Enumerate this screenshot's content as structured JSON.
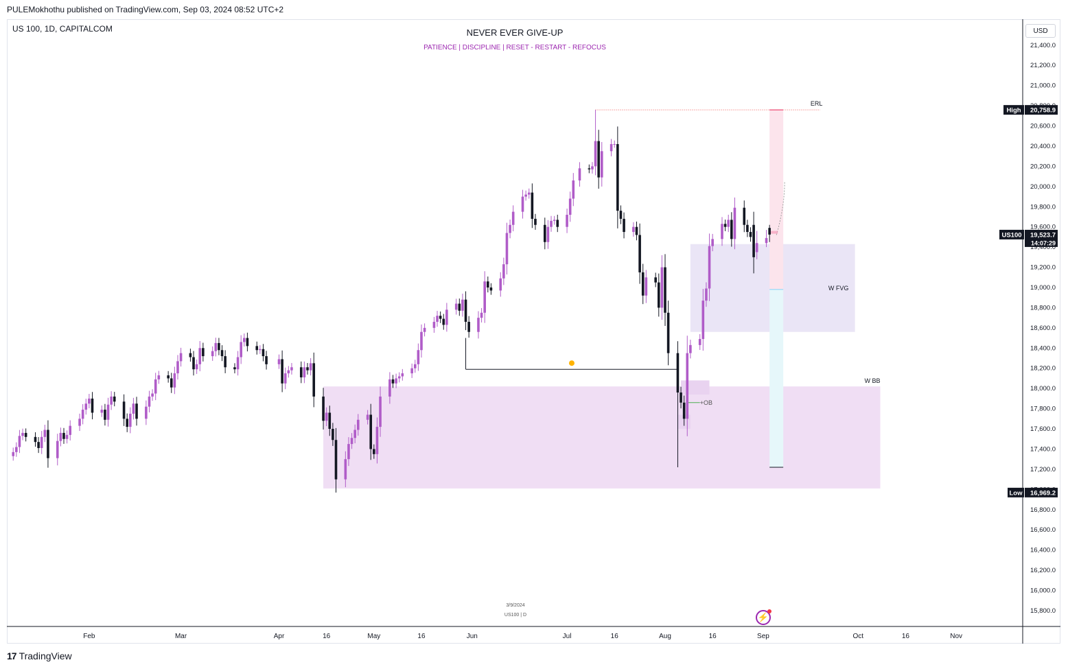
{
  "header": {
    "publisher": "PULEMokhothu published on TradingView.com, Sep 03, 2024 08:52 UTC+2",
    "symbol": "US 100, 1D, CAPITALCOM",
    "title": "NEVER EVER GIVE-UP",
    "subtitle": "PATIENCE   |   DISCIPLINE   |   RESET - RESTART - REFOCUS",
    "currency": "USD"
  },
  "footer": {
    "logo_mark": "17",
    "logo_text": "TradingView"
  },
  "watermark": {
    "date": "3/9/2024",
    "symbol": "US100 | D"
  },
  "colors": {
    "bull": "#b05cc8",
    "bear": "#131722",
    "zone": "#f0def4",
    "fvg": "#e6e1f4",
    "target_up": "#fce4ec",
    "target_down": "#e6f7fa",
    "accent": "#9c27b0",
    "grid": "#e0e3eb"
  },
  "chart_data": {
    "type": "candlestick",
    "y_axis": {
      "ticks": [
        15800,
        16000,
        16200,
        16400,
        16600,
        16800,
        17000,
        17200,
        17400,
        17600,
        17800,
        18000,
        18200,
        18400,
        18600,
        18800,
        19000,
        19200,
        19400,
        19600,
        19800,
        20000,
        20200,
        20400,
        20600,
        20800,
        21000,
        21200,
        21400
      ],
      "tick_labels": [
        "15,800.0",
        "16,000.0",
        "16,200.0",
        "16,400.0",
        "16,600.0",
        "16,800.0",
        "17,000.0",
        "17,200.0",
        "17,400.0",
        "17,600.0",
        "17,800.0",
        "18,000.0",
        "18,200.0",
        "18,400.0",
        "18,600.0",
        "18,800.0",
        "19,000.0",
        "19,200.0",
        "19,400.0",
        "19,600.0",
        "19,800.0",
        "20,000.0",
        "20,200.0",
        "20,400.0",
        "20,600.0",
        "20,800.0",
        "21,000.0",
        "21,200.0",
        "21,400.0"
      ],
      "range": [
        15650,
        21650
      ]
    },
    "x_axis": {
      "labels": [
        "Feb",
        "Mar",
        "Apr",
        "16",
        "May",
        "16",
        "Jun",
        "Jul",
        "16",
        "Aug",
        "16",
        "Sep",
        "Oct",
        "16",
        "Nov"
      ],
      "dates": [
        "2024-02-01",
        "2024-03-01",
        "2024-04-01",
        "2024-04-16",
        "2024-05-01",
        "2024-05-16",
        "2024-06-01",
        "2024-07-01",
        "2024-07-16",
        "2024-08-01",
        "2024-08-16",
        "2024-09-01",
        "2024-10-01",
        "2024-10-16",
        "2024-11-01"
      ],
      "range": [
        "2024-01-06",
        "2024-11-22"
      ]
    },
    "candles_close": [
      [
        "2024-01-08",
        17370
      ],
      [
        "2024-01-09",
        17420
      ],
      [
        "2024-01-10",
        17530
      ],
      [
        "2024-01-11",
        17560
      ],
      [
        "2024-01-12",
        17520
      ],
      [
        "2024-01-15",
        17470
      ],
      [
        "2024-01-16",
        17410
      ],
      [
        "2024-01-17",
        17520
      ],
      [
        "2024-01-18",
        17590
      ],
      [
        "2024-01-19",
        17310
      ],
      [
        "2024-01-22",
        17480
      ],
      [
        "2024-01-23",
        17560
      ],
      [
        "2024-01-24",
        17500
      ],
      [
        "2024-01-25",
        17540
      ],
      [
        "2024-01-26",
        17630
      ],
      [
        "2024-01-29",
        17700
      ],
      [
        "2024-01-30",
        17790
      ],
      [
        "2024-01-31",
        17850
      ],
      [
        "2024-02-01",
        17900
      ],
      [
        "2024-02-02",
        17760
      ],
      [
        "2024-02-05",
        17790
      ],
      [
        "2024-02-06",
        17690
      ],
      [
        "2024-02-07",
        17840
      ],
      [
        "2024-02-08",
        17920
      ],
      [
        "2024-02-09",
        17870
      ],
      [
        "2024-02-12",
        17700
      ],
      [
        "2024-02-13",
        17620
      ],
      [
        "2024-02-14",
        17750
      ],
      [
        "2024-02-15",
        17850
      ],
      [
        "2024-02-16",
        17700
      ],
      [
        "2024-02-19",
        17820
      ],
      [
        "2024-02-20",
        17920
      ],
      [
        "2024-02-21",
        17950
      ],
      [
        "2024-02-22",
        18090
      ],
      [
        "2024-02-23",
        18130
      ],
      [
        "2024-02-26",
        18100
      ],
      [
        "2024-02-27",
        18010
      ],
      [
        "2024-02-28",
        18150
      ],
      [
        "2024-02-29",
        18270
      ],
      [
        "2024-03-01",
        18350
      ],
      [
        "2024-03-04",
        18310
      ],
      [
        "2024-03-05",
        18190
      ],
      [
        "2024-03-06",
        18240
      ],
      [
        "2024-03-07",
        18400
      ],
      [
        "2024-03-08",
        18320
      ],
      [
        "2024-03-11",
        18370
      ],
      [
        "2024-03-12",
        18450
      ],
      [
        "2024-03-13",
        18380
      ],
      [
        "2024-03-14",
        18320
      ],
      [
        "2024-03-15",
        18210
      ],
      [
        "2024-03-18",
        18190
      ],
      [
        "2024-03-19",
        18310
      ],
      [
        "2024-03-20",
        18460
      ],
      [
        "2024-03-21",
        18500
      ],
      [
        "2024-03-22",
        18420
      ],
      [
        "2024-03-25",
        18380
      ],
      [
        "2024-03-26",
        18390
      ],
      [
        "2024-03-27",
        18320
      ],
      [
        "2024-03-28",
        18240
      ],
      [
        "2024-04-01",
        18290
      ],
      [
        "2024-04-02",
        18050
      ],
      [
        "2024-04-03",
        18150
      ],
      [
        "2024-04-04",
        18180
      ],
      [
        "2024-04-05",
        18210
      ],
      [
        "2024-04-08",
        18110
      ],
      [
        "2024-04-09",
        18210
      ],
      [
        "2024-04-10",
        18180
      ],
      [
        "2024-04-11",
        18250
      ],
      [
        "2024-04-12",
        17920
      ],
      [
        "2024-04-15",
        17680
      ],
      [
        "2024-04-16",
        17760
      ],
      [
        "2024-04-17",
        17600
      ],
      [
        "2024-04-18",
        17490
      ],
      [
        "2024-04-19",
        17100
      ],
      [
        "2024-04-22",
        17300
      ],
      [
        "2024-04-23",
        17450
      ],
      [
        "2024-04-24",
        17510
      ],
      [
        "2024-04-25",
        17590
      ],
      [
        "2024-04-26",
        17690
      ],
      [
        "2024-04-29",
        17740
      ],
      [
        "2024-04-30",
        17400
      ],
      [
        "2024-05-01",
        17350
      ],
      [
        "2024-05-02",
        17620
      ],
      [
        "2024-05-03",
        17920
      ],
      [
        "2024-05-06",
        18090
      ],
      [
        "2024-05-07",
        18050
      ],
      [
        "2024-05-08",
        18100
      ],
      [
        "2024-05-09",
        18120
      ],
      [
        "2024-05-10",
        18150
      ],
      [
        "2024-05-13",
        18200
      ],
      [
        "2024-05-14",
        18240
      ],
      [
        "2024-05-15",
        18380
      ],
      [
        "2024-05-16",
        18560
      ],
      [
        "2024-05-17",
        18600
      ],
      [
        "2024-05-20",
        18660
      ],
      [
        "2024-05-21",
        18720
      ],
      [
        "2024-05-22",
        18690
      ],
      [
        "2024-05-23",
        18630
      ],
      [
        "2024-05-24",
        18780
      ],
      [
        "2024-05-27",
        18840
      ],
      [
        "2024-05-28",
        18770
      ],
      [
        "2024-05-29",
        18880
      ],
      [
        "2024-05-30",
        18660
      ],
      [
        "2024-05-31",
        18560
      ],
      [
        "2024-06-03",
        18700
      ],
      [
        "2024-06-04",
        18750
      ],
      [
        "2024-06-05",
        19060
      ],
      [
        "2024-06-06",
        19000
      ],
      [
        "2024-06-07",
        18970
      ],
      [
        "2024-06-10",
        19090
      ],
      [
        "2024-06-11",
        19230
      ],
      [
        "2024-06-12",
        19540
      ],
      [
        "2024-06-13",
        19620
      ],
      [
        "2024-06-14",
        19750
      ],
      [
        "2024-06-17",
        19900
      ],
      [
        "2024-06-18",
        19920
      ],
      [
        "2024-06-19",
        19940
      ],
      [
        "2024-06-20",
        19680
      ],
      [
        "2024-06-21",
        19620
      ],
      [
        "2024-06-24",
        19450
      ],
      [
        "2024-06-25",
        19600
      ],
      [
        "2024-06-26",
        19660
      ],
      [
        "2024-06-27",
        19670
      ],
      [
        "2024-06-28",
        19600
      ],
      [
        "2024-07-01",
        19720
      ],
      [
        "2024-07-02",
        19880
      ],
      [
        "2024-07-03",
        20060
      ],
      [
        "2024-07-05",
        20180
      ],
      [
        "2024-07-08",
        20170
      ],
      [
        "2024-07-09",
        20200
      ],
      [
        "2024-07-10",
        20450
      ],
      [
        "2024-07-11",
        20090
      ],
      [
        "2024-07-12",
        20350
      ],
      [
        "2024-07-15",
        20420
      ],
      [
        "2024-07-16",
        20420
      ],
      [
        "2024-07-17",
        19760
      ],
      [
        "2024-07-18",
        19680
      ],
      [
        "2024-07-19",
        19550
      ],
      [
        "2024-07-22",
        19600
      ],
      [
        "2024-07-23",
        19520
      ],
      [
        "2024-07-24",
        19150
      ],
      [
        "2024-07-25",
        18920
      ],
      [
        "2024-07-26",
        19100
      ],
      [
        "2024-07-29",
        19050
      ],
      [
        "2024-07-30",
        18800
      ],
      [
        "2024-07-31",
        19200
      ],
      [
        "2024-08-01",
        18750
      ],
      [
        "2024-08-02",
        18350
      ],
      [
        "2024-08-05",
        17960
      ],
      [
        "2024-08-06",
        17860
      ],
      [
        "2024-08-07",
        17700
      ],
      [
        "2024-08-08",
        18350
      ],
      [
        "2024-08-09",
        18430
      ],
      [
        "2024-08-12",
        18490
      ],
      [
        "2024-08-13",
        18870
      ],
      [
        "2024-08-14",
        18990
      ],
      [
        "2024-08-15",
        19410
      ],
      [
        "2024-08-16",
        19480
      ],
      [
        "2024-08-19",
        19630
      ],
      [
        "2024-08-20",
        19600
      ],
      [
        "2024-08-21",
        19670
      ],
      [
        "2024-08-22",
        19480
      ],
      [
        "2024-08-23",
        19790
      ],
      [
        "2024-08-26",
        19620
      ],
      [
        "2024-08-27",
        19550
      ],
      [
        "2024-08-28",
        19500
      ],
      [
        "2024-08-29",
        19300
      ],
      [
        "2024-08-30",
        19440
      ],
      [
        "2024-09-02",
        19490
      ],
      [
        "2024-09-03",
        19524
      ]
    ],
    "candles": [
      [
        "2024-08-29",
        19620,
        19750,
        19140,
        19300
      ],
      [
        "2024-08-30",
        19350,
        19560,
        19280,
        19440
      ],
      [
        "2024-09-02",
        19440,
        19570,
        19400,
        19490
      ],
      [
        "2024-09-03",
        19590,
        19620,
        19450,
        19524
      ]
    ],
    "overlays": {
      "high": {
        "label": "High",
        "value": "20,758.9",
        "price": 20758.9
      },
      "low": {
        "label": "Low",
        "value": "16,969.2",
        "price": 16969.2
      },
      "last": {
        "label": "US100",
        "value": "19,523.7",
        "countdown": "14:07:29",
        "price": 19523.7
      },
      "erl": {
        "label": "ERL",
        "price": 20758.9,
        "from": "2024-07-10",
        "to": "2024-09-19"
      },
      "w_fvg": {
        "label": "W FVG",
        "price_top": 19430,
        "price_bottom": 18560,
        "from": "2024-08-09",
        "to": "2024-09-30"
      },
      "w_bb": {
        "label": "W BB",
        "price_top": 18020,
        "price_bottom": 17010,
        "from": "2024-04-15",
        "to": "2024-10-08"
      },
      "ob": {
        "label": "+OB",
        "price": 17860
      },
      "level_line": {
        "price": 18190,
        "from": "2024-05-30",
        "to": "2024-08-05"
      },
      "target": {
        "entry": 18980,
        "stop": 17220,
        "tp": 20758.9,
        "date": "2024-09-03"
      }
    }
  }
}
